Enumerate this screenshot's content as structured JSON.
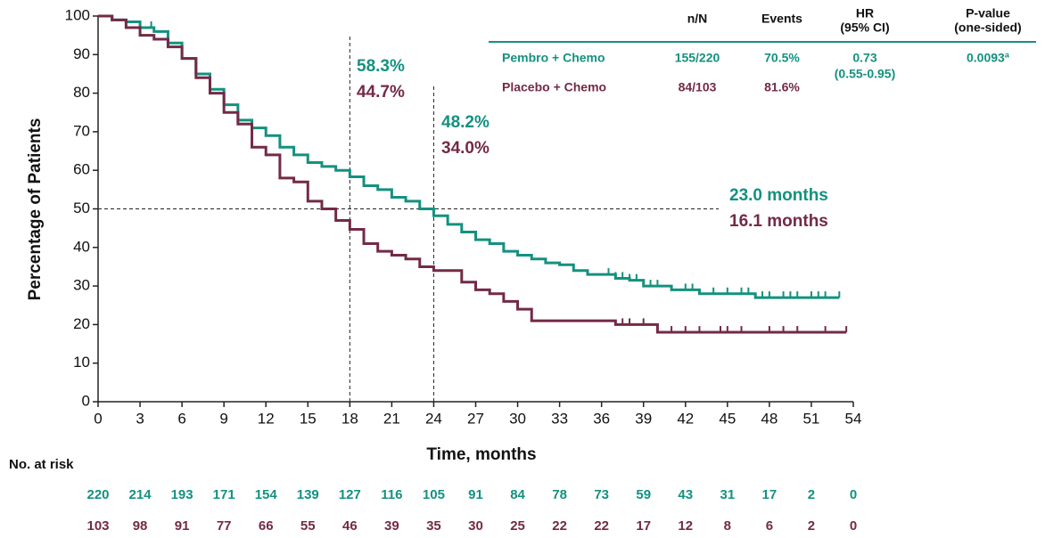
{
  "chart_data": {
    "type": "kaplan-meier",
    "x_label": "Time, months",
    "y_label": "Percentage of Patients",
    "xlim": [
      0,
      54
    ],
    "ylim": [
      0,
      100
    ],
    "xticks": [
      0,
      3,
      6,
      9,
      12,
      15,
      18,
      21,
      24,
      27,
      30,
      33,
      36,
      39,
      42,
      45,
      48,
      51,
      54
    ],
    "yticks": [
      0,
      10,
      20,
      30,
      40,
      50,
      60,
      70,
      80,
      90,
      100
    ],
    "reference_lines": {
      "x": [
        18,
        24
      ],
      "y": 50
    },
    "series": [
      {
        "name": "Pembro + Chemo",
        "color": "#14917f",
        "x": [
          0,
          1,
          2,
          3,
          4,
          5,
          6,
          7,
          8,
          9,
          10,
          11,
          12,
          13,
          14,
          15,
          16,
          17,
          18,
          19,
          20,
          21,
          22,
          23,
          24,
          25,
          26,
          27,
          28,
          29,
          30,
          31,
          32,
          33,
          34,
          35,
          37,
          38,
          39,
          41,
          43,
          47,
          53
        ],
        "values": [
          100,
          99,
          98.5,
          97,
          96,
          93,
          89,
          85,
          81,
          77,
          73,
          71,
          69,
          66,
          64,
          62,
          61,
          60,
          58.3,
          56,
          55,
          53,
          52,
          50,
          48.2,
          46,
          44,
          42,
          41,
          39,
          38,
          37,
          36,
          35.5,
          34,
          33,
          32,
          31.5,
          30,
          29,
          28,
          27,
          27
        ],
        "censored_x": [
          3.8,
          36.5,
          37,
          37.5,
          38,
          38.5,
          39.5,
          40,
          42,
          42.5,
          44,
          45,
          46,
          46.5,
          47.5,
          48,
          49,
          49.5,
          50,
          51,
          51.5,
          52,
          53
        ]
      },
      {
        "name": "Placebo + Chemo",
        "color": "#732a47",
        "x": [
          0,
          1,
          2,
          3,
          4,
          5,
          6,
          7,
          8,
          9,
          10,
          11,
          12,
          13,
          14,
          15,
          16,
          17,
          18,
          19,
          20,
          21,
          22,
          23,
          24,
          26,
          27,
          28,
          29,
          30,
          31,
          37,
          40,
          53.5
        ],
        "values": [
          100,
          99,
          97,
          95,
          94,
          92,
          89,
          84,
          80,
          75,
          72,
          66,
          64,
          58,
          57,
          52,
          50,
          47,
          44.7,
          41,
          39,
          38,
          37,
          35,
          34,
          31,
          29,
          28,
          26,
          24,
          21,
          20,
          18,
          18
        ],
        "censored_x": [
          37.5,
          38,
          39,
          41,
          42,
          43,
          44.5,
          45,
          46,
          48,
          49,
          50,
          52,
          53.5
        ]
      }
    ],
    "annotations": [
      {
        "texts": [
          "58.3%",
          "44.7%"
        ]
      },
      {
        "texts": [
          "48.2%",
          "34.0%"
        ]
      },
      {
        "texts": [
          "23.0 months",
          "16.1 months"
        ]
      }
    ],
    "summary_table": {
      "header": [
        [
          "n/N"
        ],
        [
          "Events"
        ],
        [
          "HR",
          "(95% CI)"
        ],
        [
          "P-value",
          "(one-sided)"
        ]
      ],
      "rows": [
        [
          "155/220",
          "70.5%",
          [
            "0.73",
            "(0.55-0.95)"
          ],
          "0.0093ª"
        ],
        [
          "84/103",
          "81.6%"
        ]
      ]
    },
    "risk_table": {
      "title": "No. at risk",
      "rows": [
        [
          220,
          214,
          193,
          171,
          154,
          139,
          127,
          116,
          105,
          91,
          84,
          78,
          73,
          59,
          43,
          31,
          17,
          2,
          0
        ],
        [
          103,
          98,
          91,
          77,
          66,
          55,
          46,
          39,
          35,
          30,
          25,
          22,
          22,
          17,
          12,
          8,
          6,
          2,
          0
        ]
      ]
    }
  }
}
